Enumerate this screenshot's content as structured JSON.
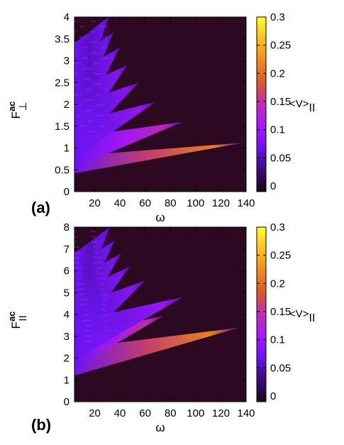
{
  "chart_data": [
    {
      "type": "heatmap",
      "panel_label": "(a)",
      "xlabel": "ω",
      "ylabel": {
        "base": "F",
        "sup": "ac",
        "sub": "⊥"
      },
      "colorbar_label": {
        "base": "<V>",
        "sub": "II"
      },
      "xlim": [
        4,
        140
      ],
      "ylim": [
        0,
        4
      ],
      "clim": [
        -0.01,
        0.3
      ],
      "xticks": [
        20,
        40,
        60,
        80,
        100,
        120,
        140
      ],
      "xtick_labels": [
        "20",
        "40",
        "60",
        "80",
        "100",
        "120",
        "140"
      ],
      "yticks": [
        0,
        0.5,
        1,
        1.5,
        2,
        2.5,
        3,
        3.5,
        4
      ],
      "ytick_labels": [
        "0",
        "0.5",
        "1",
        "1.5",
        "2",
        "2.5",
        "3",
        "3.5",
        "4"
      ],
      "cticks": [
        0,
        0.05,
        0.1,
        0.15,
        0.2,
        0.25,
        0.3
      ],
      "ctick_labels": [
        "0",
        "0.05",
        "0.1",
        "0.15",
        "0.2",
        "0.25",
        "0.3"
      ],
      "colormap": [
        "#1a0616",
        "#3c0a78",
        "#6a14f0",
        "#a818ff",
        "#c42ab8",
        "#da5a2a",
        "#ee8a20",
        "#f8c020",
        "#ffff30"
      ],
      "background_color": "#2e0a22",
      "tongues": [
        {
          "tip_omega": 138,
          "tip_F": 1.12,
          "F_low": 0.42,
          "F_high": 0.82,
          "peak": 0.22
        },
        {
          "tip_omega": 90,
          "tip_F": 1.6,
          "F_low": 0.55,
          "F_high": 1.25,
          "peak": 0.14
        },
        {
          "tip_omega": 68,
          "tip_F": 2.05,
          "F_low": 0.75,
          "F_high": 1.6,
          "peak": 0.1
        },
        {
          "tip_omega": 55,
          "tip_F": 2.5,
          "F_low": 0.95,
          "F_high": 2.0,
          "peak": 0.09
        },
        {
          "tip_omega": 46,
          "tip_F": 2.9,
          "F_low": 1.1,
          "F_high": 2.35,
          "peak": 0.085
        },
        {
          "tip_omega": 40,
          "tip_F": 3.3,
          "F_low": 1.3,
          "F_high": 2.7,
          "peak": 0.08
        },
        {
          "tip_omega": 35,
          "tip_F": 3.65,
          "F_low": 1.5,
          "F_high": 3.05,
          "peak": 0.075
        },
        {
          "tip_omega": 31,
          "tip_F": 4.0,
          "F_low": 1.7,
          "F_high": 3.4,
          "peak": 0.07
        }
      ]
    },
    {
      "type": "heatmap",
      "panel_label": "(b)",
      "xlabel": "ω",
      "ylabel": {
        "base": "F",
        "sup": "ac",
        "sub": "II"
      },
      "colorbar_label": {
        "base": "<V>",
        "sub": "II"
      },
      "xlim": [
        4,
        140
      ],
      "ylim": [
        0,
        8
      ],
      "clim": [
        -0.01,
        0.3
      ],
      "xticks": [
        20,
        40,
        60,
        80,
        100,
        120,
        140
      ],
      "xtick_labels": [
        "20",
        "40",
        "60",
        "80",
        "100",
        "120",
        "140"
      ],
      "yticks": [
        0,
        1,
        2,
        3,
        4,
        5,
        6,
        7,
        8
      ],
      "ytick_labels": [
        "0",
        "1",
        "2",
        "3",
        "4",
        "5",
        "6",
        "7",
        "8"
      ],
      "cticks": [
        0,
        0.05,
        0.1,
        0.15,
        0.2,
        0.25,
        0.3
      ],
      "ctick_labels": [
        "0",
        "0.05",
        "0.1",
        "0.15",
        "0.2",
        "0.25",
        "0.3"
      ],
      "colormap": [
        "#1a0616",
        "#3c0a78",
        "#6a14f0",
        "#a818ff",
        "#c42ab8",
        "#da5a2a",
        "#ee8a20",
        "#f8c020",
        "#ffff30"
      ],
      "background_color": "#2e0a22",
      "tongues": [
        {
          "tip_omega": 135,
          "tip_F": 3.4,
          "F_low": 1.2,
          "F_high": 2.45,
          "peak": 0.22
        },
        {
          "tip_omega": 75,
          "tip_F": 3.95,
          "F_low": 1.55,
          "F_high": 3.0,
          "peak": 0.15
        },
        {
          "tip_omega": 90,
          "tip_F": 4.8,
          "F_low": 1.9,
          "F_high": 3.7,
          "peak": 0.1
        },
        {
          "tip_omega": 60,
          "tip_F": 5.55,
          "F_low": 2.3,
          "F_high": 4.4,
          "peak": 0.09
        },
        {
          "tip_omega": 48,
          "tip_F": 6.2,
          "F_low": 2.7,
          "F_high": 5.0,
          "peak": 0.085
        },
        {
          "tip_omega": 41,
          "tip_F": 6.8,
          "F_low": 3.1,
          "F_high": 5.6,
          "peak": 0.08
        },
        {
          "tip_omega": 36,
          "tip_F": 7.4,
          "F_low": 3.5,
          "F_high": 6.2,
          "peak": 0.075
        },
        {
          "tip_omega": 32,
          "tip_F": 8.0,
          "F_low": 3.9,
          "F_high": 6.8,
          "peak": 0.07
        }
      ]
    }
  ]
}
